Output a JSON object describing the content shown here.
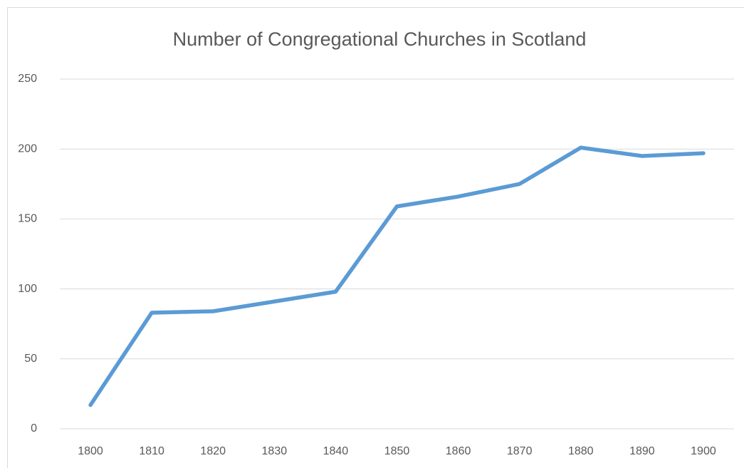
{
  "chart_data": {
    "type": "line",
    "title": "Number of Congregational Churches in Scotland",
    "categories": [
      "1800",
      "1810",
      "1820",
      "1830",
      "1840",
      "1850",
      "1860",
      "1870",
      "1880",
      "1890",
      "1900"
    ],
    "series": [
      {
        "name": "Number of Congregational Churches",
        "color": "#5b9bd5",
        "values": [
          17,
          83,
          84,
          91,
          98,
          159,
          166,
          175,
          201,
          195,
          197
        ]
      }
    ],
    "ylim": [
      0,
      250
    ],
    "yticks": [
      0,
      50,
      100,
      150,
      200,
      250
    ],
    "grid": true
  }
}
